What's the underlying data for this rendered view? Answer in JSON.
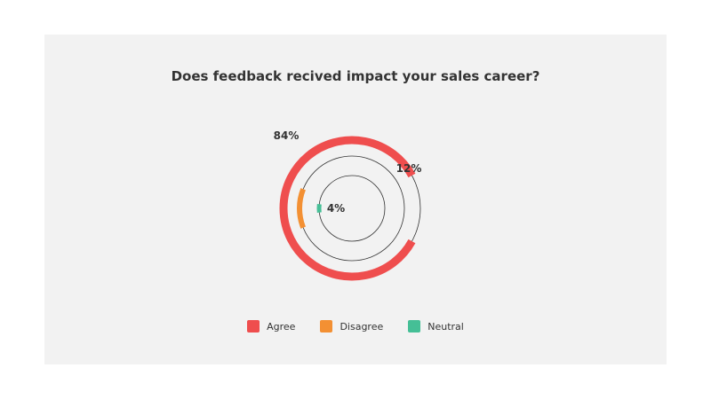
{
  "chart_data": {
    "type": "radial-bar",
    "title": "Does feedback recived impact your sales career?",
    "categories": [
      "Agree",
      "Disagree",
      "Neutral"
    ],
    "values": [
      84,
      12,
      4
    ],
    "value_labels": [
      "84%",
      "12%",
      "4%"
    ],
    "unit": "%",
    "max": 100,
    "legend_position": "bottom-center",
    "colors": [
      "#ef4e4e",
      "#f39033",
      "#45bf96"
    ],
    "track_color": "#333333",
    "background": "#f2f2f2"
  }
}
